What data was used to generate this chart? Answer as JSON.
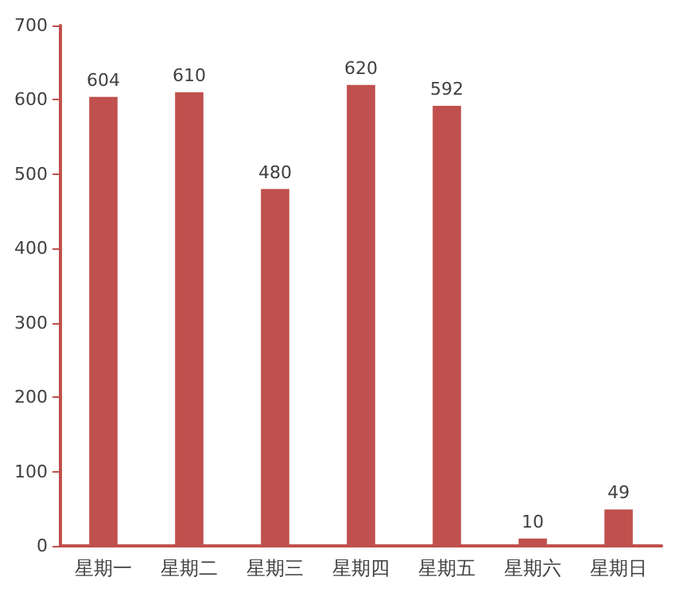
{
  "chart_data": {
    "type": "bar",
    "categories": [
      "星期一",
      "星期二",
      "星期三",
      "星期四",
      "星期五",
      "星期六",
      "星期日"
    ],
    "values": [
      604,
      610,
      480,
      620,
      592,
      10,
      49
    ],
    "color": "#c0504d",
    "ylim": [
      0,
      700
    ],
    "yticks": [
      0,
      100,
      200,
      300,
      400,
      500,
      600,
      700
    ],
    "grid": false,
    "data_labels": true
  }
}
